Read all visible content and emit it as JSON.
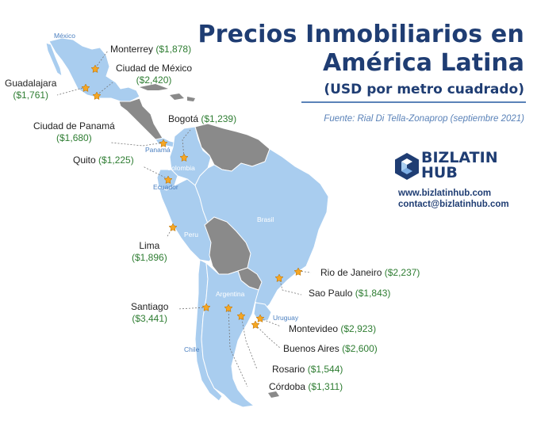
{
  "title": {
    "line1": "Precios Inmobiliarios en",
    "line2": "América Latina",
    "line3": "(USD por metro cuadrado)"
  },
  "source": "Fuente: Rial Di Tella-Zonaprop (septiembre 2021)",
  "brand": {
    "name_line1": "BIZLATIN",
    "name_line2": "HUB",
    "website": "www.bizlatinhub.com",
    "email": "contact@bizlatinhub.com"
  },
  "colors": {
    "highlight_country": "#a9cdef",
    "other_country": "#8a8a8a",
    "marker": "#f5a623",
    "title": "#1f3d73",
    "price": "#2e7d32"
  },
  "countries": {
    "mexico": "México",
    "panama": "Panamá",
    "colombia": "Colombia",
    "ecuador": "Ecuador",
    "peru": "Peru",
    "brasil": "Brasil",
    "argentina": "Argentina",
    "uruguay": "Uruguay",
    "chile": "Chile"
  },
  "cities": {
    "monterrey": {
      "name": "Monterrey",
      "price": "($1,878)"
    },
    "cdmx": {
      "name": "Ciudad de México",
      "price": "($2,420)"
    },
    "guadalajara": {
      "name": "Guadalajara",
      "price": "($1,761)"
    },
    "panama": {
      "name": "Ciudad de Panamá",
      "price": "($1,680)"
    },
    "bogota": {
      "name": "Bogotá",
      "price": "($1,239)"
    },
    "quito": {
      "name": "Quito",
      "price": "($1,225)"
    },
    "lima": {
      "name": "Lima",
      "price": "($1,896)"
    },
    "rio": {
      "name": "Rio de Janeiro",
      "price": "($2,237)"
    },
    "saopaulo": {
      "name": "Sao Paulo",
      "price": "($1,843)"
    },
    "santiago": {
      "name": "Santiago",
      "price": "($3,441)"
    },
    "montevideo": {
      "name": "Montevideo",
      "price": "($2,923)"
    },
    "buenosaires": {
      "name": "Buenos Aires",
      "price": "($2,600)"
    },
    "rosario": {
      "name": "Rosario",
      "price": "($1,544)"
    },
    "cordoba": {
      "name": "Córdoba",
      "price": "($1,311)"
    }
  }
}
